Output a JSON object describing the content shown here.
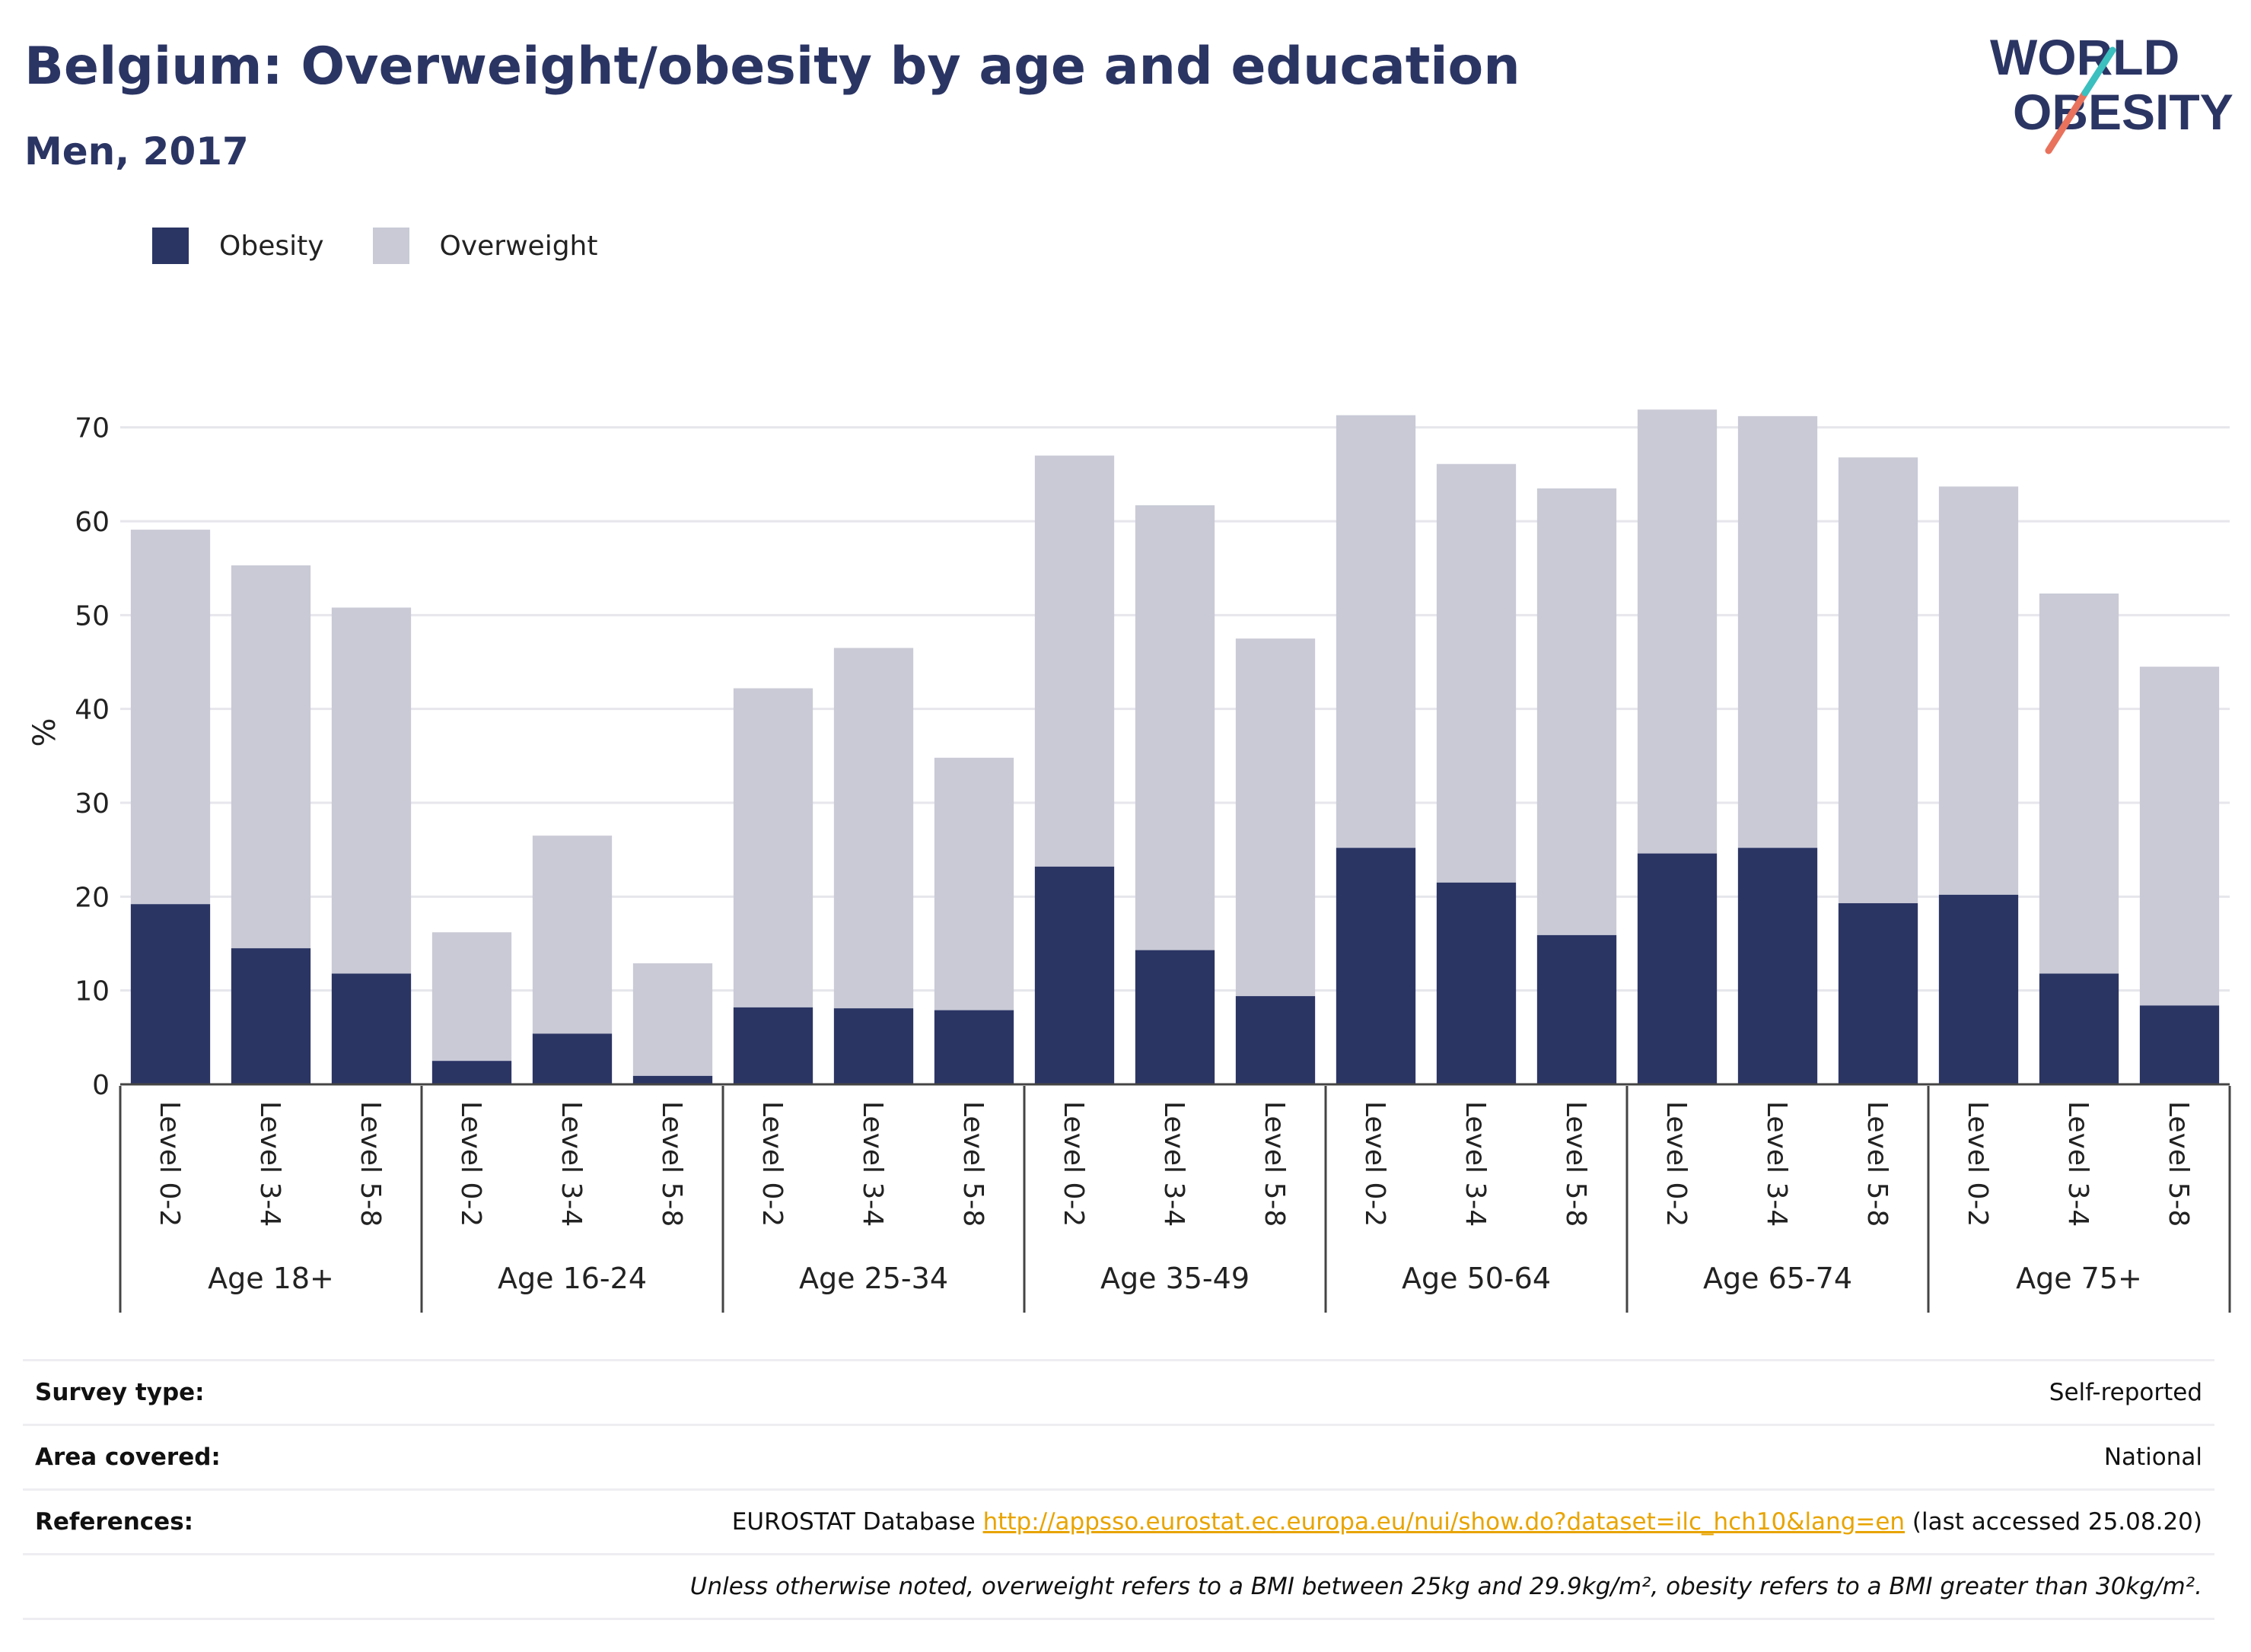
{
  "header": {
    "title": "Belgium: Overweight/obesity by age and education",
    "subtitle": "Men, 2017"
  },
  "logo": {
    "line1": "WORLD",
    "line2": "OBESITY"
  },
  "legend": [
    {
      "label": "Obesity",
      "color": "#2b3564"
    },
    {
      "label": "Overweight",
      "color": "#c9cad6"
    }
  ],
  "chart_data": {
    "type": "bar",
    "stacked": true,
    "ylabel": "%",
    "ylim": [
      0,
      75
    ],
    "yticks": [
      0,
      10,
      20,
      30,
      40,
      50,
      60,
      70
    ],
    "grid": true,
    "legend_position": "top-left",
    "groups": [
      "Age 18+",
      "Age 16-24",
      "Age 25-34",
      "Age 35-49",
      "Age 50-64",
      "Age 65-74",
      "Age 75+"
    ],
    "levels": [
      "Level 0-2",
      "Level 3-4",
      "Level 5-8"
    ],
    "series": [
      {
        "name": "Obesity",
        "color": "#2b3564",
        "values": [
          19.2,
          14.5,
          11.8,
          2.5,
          5.4,
          0.9,
          8.2,
          8.1,
          7.9,
          23.2,
          14.3,
          9.4,
          25.2,
          21.5,
          15.9,
          24.6,
          25.2,
          19.3,
          20.2,
          11.8,
          8.4
        ]
      },
      {
        "name": "Overweight",
        "color": "#c9cad6",
        "values": [
          39.9,
          40.8,
          39.0,
          13.7,
          21.1,
          12.0,
          34.0,
          38.4,
          26.9,
          43.8,
          47.4,
          38.1,
          46.1,
          44.6,
          47.6,
          47.3,
          46.0,
          47.5,
          43.5,
          40.5,
          36.1
        ]
      }
    ]
  },
  "info": {
    "survey_label": "Survey type:",
    "survey_value": "Self-reported",
    "area_label": "Area covered:",
    "area_value": "National",
    "ref_label": "References:",
    "ref_prefix": "EUROSTAT Database ",
    "ref_link": "http://appsso.eurostat.ec.europa.eu/nui/show.do?dataset=ilc_hch10&lang=en",
    "ref_suffix": " (last accessed 25.08.20)",
    "note": "Unless otherwise noted, overweight refers to a BMI between 25kg and 29.9kg/m², obesity refers to a BMI greater than 30kg/m²."
  }
}
